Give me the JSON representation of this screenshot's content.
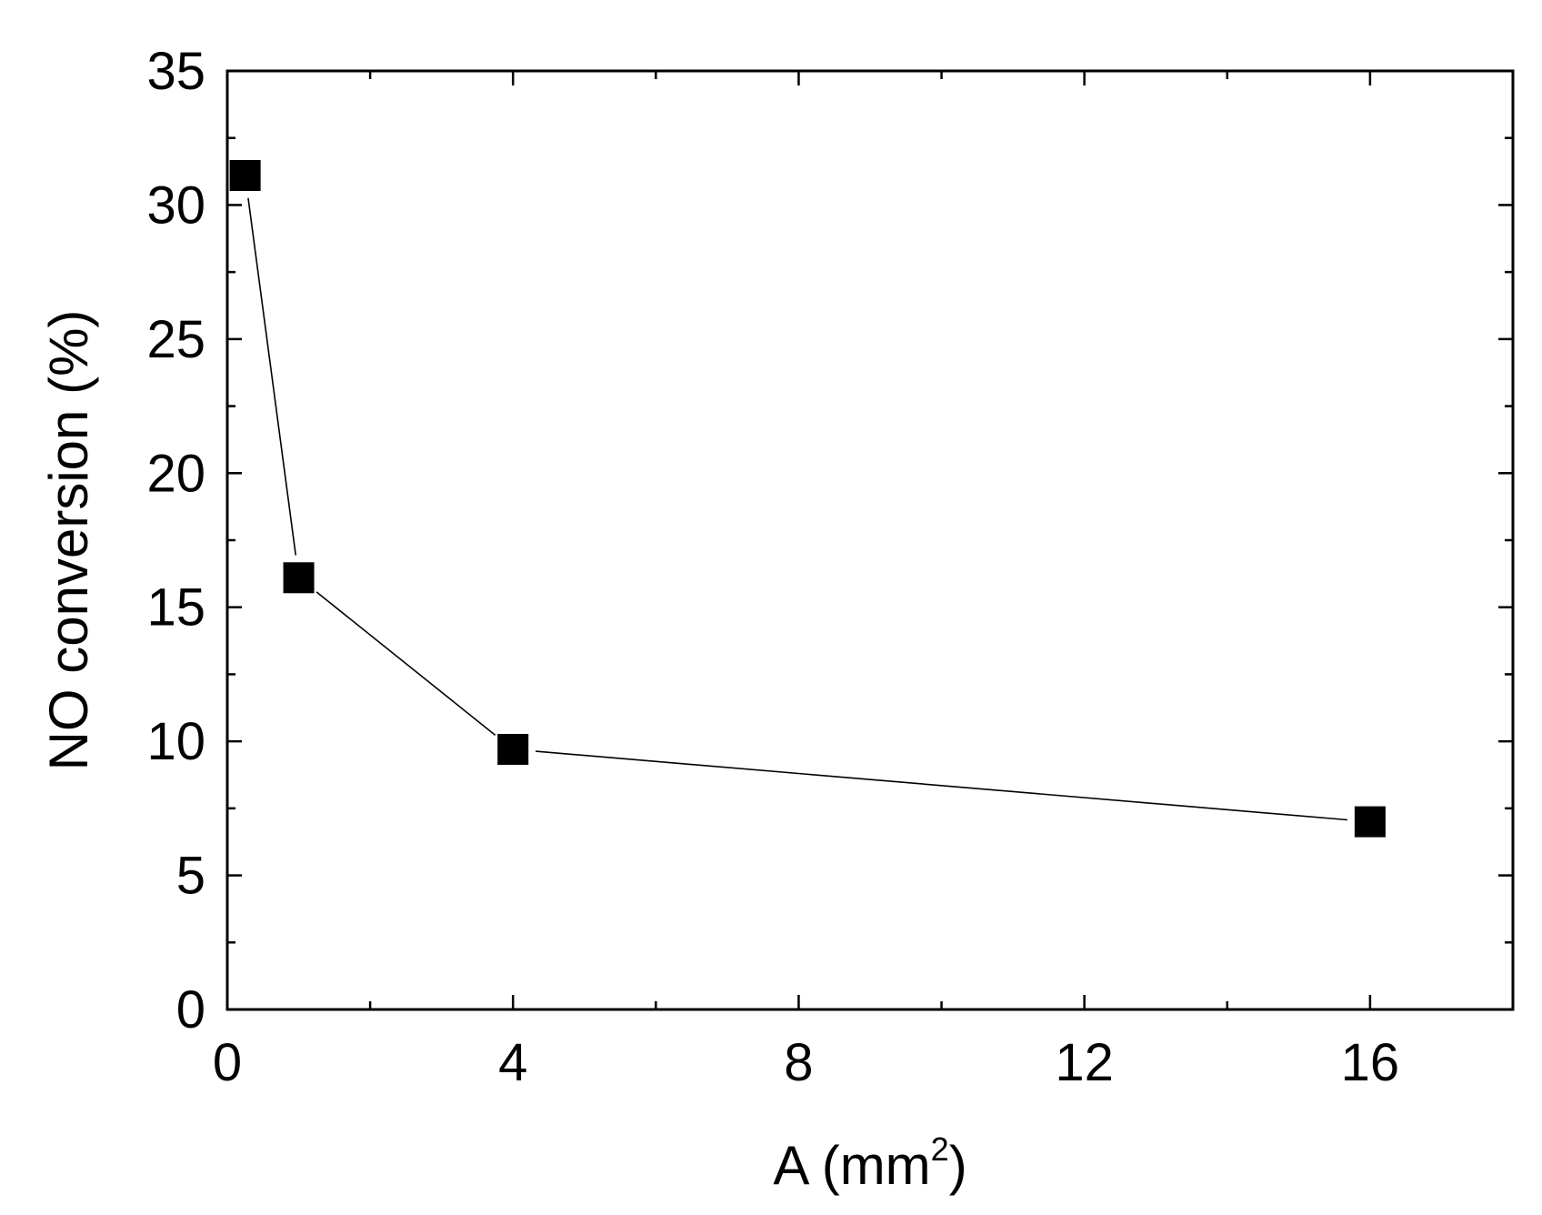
{
  "chart_data": {
    "type": "line",
    "xlabel": "A (mm",
    "xlabel_sup": "2",
    "xlabel_end": ")",
    "ylabel": "NO conversion (%)",
    "xlim": [
      0,
      18
    ],
    "ylim": [
      0,
      35
    ],
    "x_ticks": [
      "0",
      "4",
      "8",
      "12",
      "16"
    ],
    "y_ticks": [
      "0",
      "5",
      "10",
      "15",
      "20",
      "25",
      "30",
      "35"
    ],
    "x_tick_values": [
      0,
      4,
      8,
      12,
      16
    ],
    "y_tick_values": [
      0,
      5,
      10,
      15,
      20,
      25,
      30,
      35
    ],
    "x_minor_ticks": [
      2,
      6,
      10,
      14
    ],
    "y_minor_ticks": [
      2.5,
      7.5,
      12.5,
      17.5,
      22.5,
      27.5,
      32.5
    ],
    "grid": false,
    "marker": "square",
    "series": [
      {
        "x": [
          0.25,
          1,
          4,
          16
        ],
        "y": [
          31.1,
          16.1,
          9.7,
          7.0
        ],
        "color": "#000000"
      }
    ]
  }
}
